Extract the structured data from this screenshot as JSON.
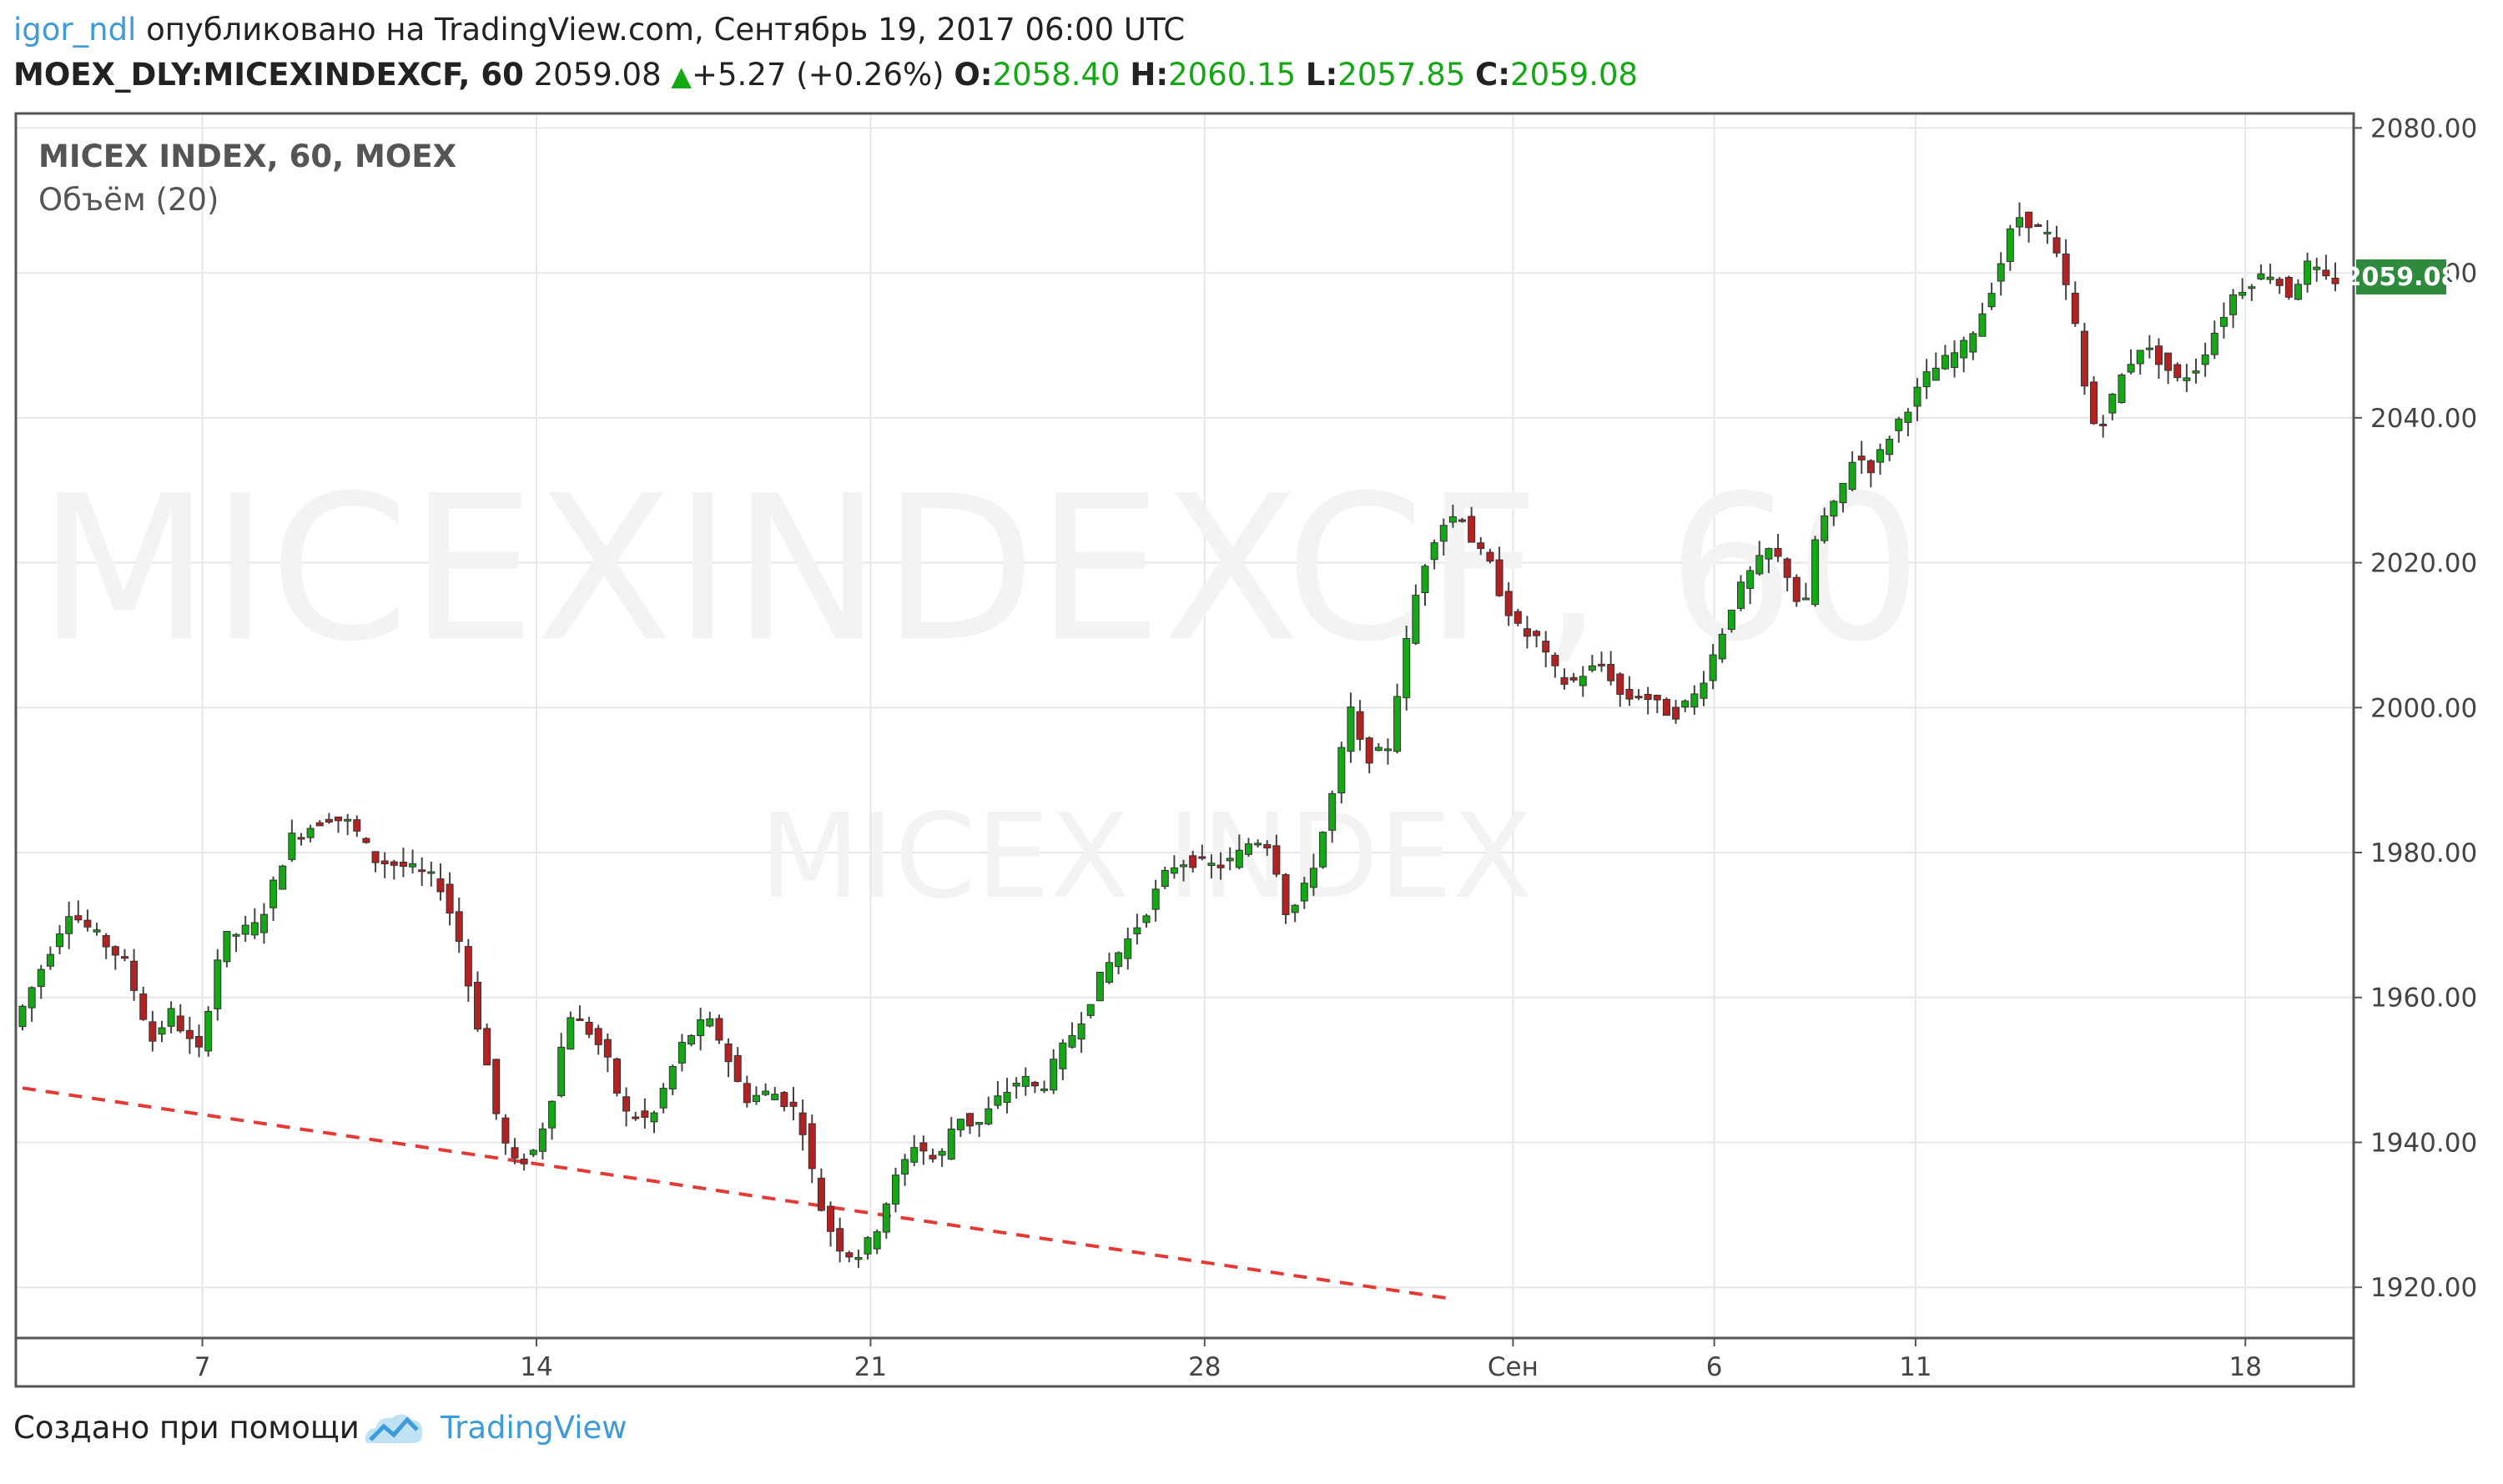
{
  "header": {
    "username": "igor_ndl",
    "published_text": " опубликовано на TradingView.com, Сентябрь 19, 2017 06:00 UTC",
    "symbol": "MOEX_DLY:MICEXINDEXCF, 60",
    "last_price": "2059.08",
    "change": "+5.27 (+0.26%)",
    "open_label": "O:",
    "open_value": "2058.40",
    "high_label": "H:",
    "high_value": "2060.15",
    "low_label": "L:",
    "low_value": "2057.85",
    "close_label": "C:",
    "close_value": "2059.08",
    "up_color": "#15a815"
  },
  "legend": {
    "title": "MICEX INDEX, 60, MOEX",
    "volume": "Объём (20)"
  },
  "watermark": {
    "main": "MICEXINDEXCF, 60",
    "sub": "MICEX INDEX"
  },
  "chart_data": {
    "type": "candlestick",
    "title": "MICEX INDEX, 60, MOEX",
    "x_tick_labels": [
      "7",
      "14",
      "21",
      "28",
      "Сен",
      "6",
      "11",
      "18"
    ],
    "y_ticks": [
      "1920.00",
      "1940.00",
      "1960.00",
      "1980.00",
      "2000.00",
      "2020.00",
      "2040.00",
      "2060.00",
      "2080.00"
    ],
    "ylim": [
      1913,
      2082
    ],
    "grid": true,
    "last_price_label": "2059.08",
    "up_color": "#15a815",
    "down_color": "#b22222",
    "close_path": [
      [
        0,
        1956
      ],
      [
        1.2,
        1972
      ],
      [
        2.4,
        1965
      ],
      [
        3.0,
        1954
      ],
      [
        3.4,
        1958
      ],
      [
        4.0,
        1952
      ],
      [
        4.5,
        1968
      ],
      [
        5.3,
        1970
      ],
      [
        6.0,
        1982
      ],
      [
        6.8,
        1985
      ],
      [
        7.3,
        1984
      ],
      [
        7.8,
        1979
      ],
      [
        8.5,
        1978
      ],
      [
        9.2,
        1976
      ],
      [
        9.6,
        1969
      ],
      [
        9.9,
        1960
      ],
      [
        10.2,
        1952
      ],
      [
        10.5,
        1942
      ],
      [
        10.8,
        1937
      ],
      [
        11.2,
        1938
      ],
      [
        11.6,
        1945
      ],
      [
        12.0,
        1958
      ],
      [
        12.5,
        1955
      ],
      [
        12.8,
        1952
      ],
      [
        13.2,
        1944
      ],
      [
        13.8,
        1943
      ],
      [
        14.1,
        1948
      ],
      [
        14.5,
        1954
      ],
      [
        15.0,
        1957
      ],
      [
        15.3,
        1954
      ],
      [
        15.8,
        1946
      ],
      [
        16.4,
        1947
      ],
      [
        17.0,
        1944
      ],
      [
        17.4,
        1932
      ],
      [
        17.8,
        1926
      ],
      [
        18.2,
        1924
      ],
      [
        18.6,
        1927
      ],
      [
        19.0,
        1934
      ],
      [
        19.5,
        1940
      ],
      [
        20.0,
        1937
      ],
      [
        20.4,
        1944
      ],
      [
        20.8,
        1942
      ],
      [
        21.3,
        1946
      ],
      [
        21.8,
        1949
      ],
      [
        22.2,
        1947
      ],
      [
        22.6,
        1952
      ],
      [
        23.0,
        1956
      ],
      [
        23.6,
        1964
      ],
      [
        24.0,
        1967
      ],
      [
        24.4,
        1971
      ],
      [
        25.0,
        1978
      ],
      [
        25.4,
        1979
      ],
      [
        26.0,
        1978
      ],
      [
        26.4,
        1979
      ],
      [
        26.8,
        1982
      ],
      [
        27.2,
        1981
      ],
      [
        27.5,
        1972
      ],
      [
        27.8,
        1973
      ],
      [
        28.2,
        1980
      ],
      [
        28.6,
        1990
      ],
      [
        28.9,
        2000
      ],
      [
        29.2,
        1993
      ],
      [
        29.7,
        1994
      ],
      [
        30.0,
        2005
      ],
      [
        30.4,
        2018
      ],
      [
        30.8,
        2025
      ],
      [
        31.3,
        2027
      ],
      [
        31.6,
        2022
      ],
      [
        31.9,
        2020
      ],
      [
        32.2,
        2015
      ],
      [
        32.6,
        2010
      ],
      [
        32.9,
        2010
      ],
      [
        33.2,
        2006
      ],
      [
        33.6,
        2003
      ],
      [
        34.0,
        2005
      ],
      [
        34.4,
        2006
      ],
      [
        34.8,
        2001
      ],
      [
        35.2,
        2002
      ],
      [
        35.6,
        2000
      ],
      [
        35.9,
        1999
      ],
      [
        36.4,
        2002
      ],
      [
        36.8,
        2008
      ],
      [
        37.2,
        2015
      ],
      [
        37.6,
        2019
      ],
      [
        38.0,
        2022
      ],
      [
        38.4,
        2018
      ],
      [
        38.7,
        2012
      ],
      [
        39.0,
        2025
      ],
      [
        39.4,
        2028
      ],
      [
        39.8,
        2035
      ],
      [
        40.2,
        2033
      ],
      [
        40.6,
        2038
      ],
      [
        41.0,
        2042
      ],
      [
        41.4,
        2046
      ],
      [
        41.8,
        2048
      ],
      [
        42.2,
        2050
      ],
      [
        42.6,
        2055
      ],
      [
        43.0,
        2062
      ],
      [
        43.3,
        2068
      ],
      [
        43.6,
        2067
      ],
      [
        44.0,
        2065
      ],
      [
        44.3,
        2060
      ],
      [
        44.6,
        2052
      ],
      [
        44.9,
        2039
      ],
      [
        45.2,
        2040
      ],
      [
        45.6,
        2046
      ],
      [
        46.0,
        2050
      ],
      [
        46.4,
        2048
      ],
      [
        46.8,
        2045
      ],
      [
        47.2,
        2047
      ],
      [
        47.6,
        2052
      ],
      [
        48.0,
        2057
      ],
      [
        48.4,
        2059
      ],
      [
        48.8,
        2060
      ],
      [
        49.2,
        2057
      ],
      [
        49.6,
        2061
      ],
      [
        50.0,
        2059
      ]
    ],
    "trendline": {
      "from": [
        0,
        1947.5
      ],
      "to": [
        30.8,
        1918.5
      ],
      "color": "#e53935",
      "style": "dashed"
    }
  },
  "footer": {
    "created_with": "Создано при помощи",
    "brand": "TradingView"
  }
}
